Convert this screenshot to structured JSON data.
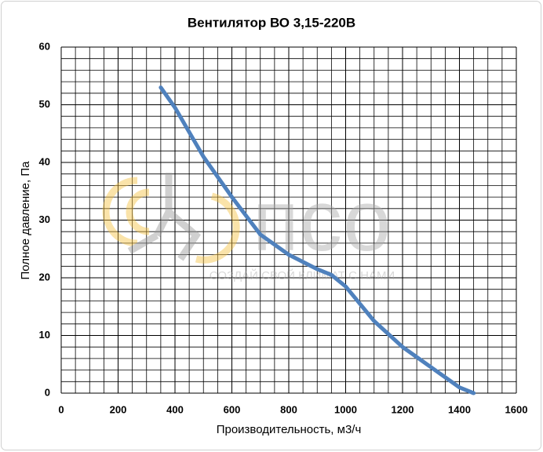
{
  "chart_data": {
    "type": "line",
    "title": "Вентилятор ВО 3,15-220В",
    "x_label": "Производительность, м3/ч",
    "y_label": "Полное давление, Па",
    "x": [
      350,
      400,
      500,
      600,
      700,
      800,
      900,
      950,
      1000,
      1100,
      1200,
      1300,
      1400,
      1450
    ],
    "series": [
      {
        "color": "#4f81bd",
        "values": [
          53,
          49.5,
          41,
          34,
          27.5,
          24,
          21.5,
          20.5,
          18.5,
          12.5,
          8,
          4.5,
          1,
          0
        ]
      }
    ],
    "xlim": [
      0,
      1600
    ],
    "xticks": [
      0,
      200,
      400,
      600,
      800,
      1000,
      1200,
      1400,
      1600
    ],
    "ylim": [
      0,
      60
    ],
    "yticks": [
      0,
      10,
      20,
      30,
      40,
      50,
      60
    ],
    "grid": true,
    "minor_grid": {
      "x": 50,
      "y": 2
    },
    "watermark": {
      "logo": "псо",
      "slogan": "СОЗДАЙ СВОЙ КЛИМАТ С НАМИ"
    }
  }
}
